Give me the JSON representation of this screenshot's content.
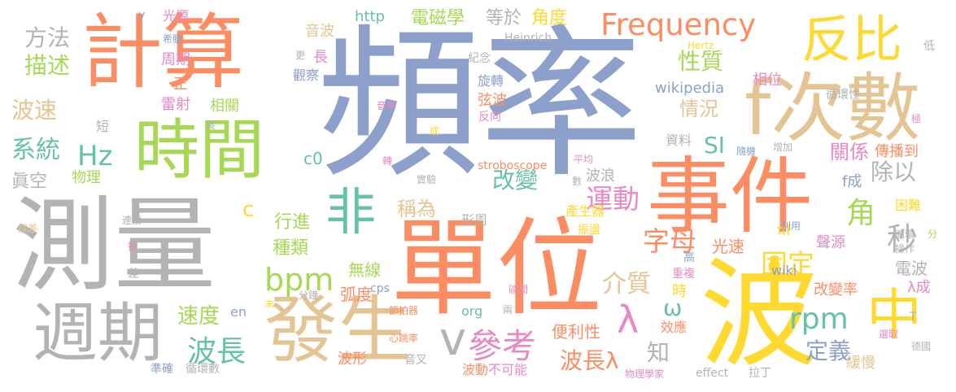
{
  "palette": {
    "blue": "#8da0cb",
    "orange": "#fc8d62",
    "green": "#66c2a5",
    "pink": "#e78ac3",
    "lime": "#a6d854",
    "yellow": "#ffd92f",
    "tan": "#e5c494",
    "gray": "#b3b3b3"
  },
  "words": [
    {
      "text": "頻率",
      "color": "blue"
    },
    {
      "text": "測量",
      "color": "gray"
    },
    {
      "text": "單位",
      "color": "orange"
    },
    {
      "text": "事件",
      "color": "orange"
    },
    {
      "text": "計算",
      "color": "orange"
    },
    {
      "text": "波",
      "color": "yellow"
    },
    {
      "text": "時間",
      "color": "lime"
    },
    {
      "text": "發生",
      "color": "tan"
    },
    {
      "text": "f次數",
      "color": "tan"
    },
    {
      "text": "週期",
      "color": "gray"
    },
    {
      "text": "反比",
      "color": "yellow"
    },
    {
      "text": "中",
      "color": "yellow"
    },
    {
      "text": "非",
      "color": "green"
    },
    {
      "text": "Frequency",
      "color": "orange"
    },
    {
      "text": "v",
      "color": "gray"
    },
    {
      "text": "參考",
      "color": "pink"
    },
    {
      "text": "λ",
      "color": "pink"
    },
    {
      "text": "bpm",
      "color": "lime"
    },
    {
      "text": "Hz",
      "color": "green"
    },
    {
      "text": "rpm",
      "color": "green"
    },
    {
      "text": "波長",
      "color": "green"
    },
    {
      "text": "字母",
      "color": "orange"
    },
    {
      "text": "固定",
      "color": "yellow"
    },
    {
      "text": "運動",
      "color": "pink"
    },
    {
      "text": "角",
      "color": "lime"
    },
    {
      "text": "秒",
      "color": "gray"
    },
    {
      "text": "SI",
      "color": "green"
    },
    {
      "text": "除以",
      "color": "gray"
    },
    {
      "text": "改變",
      "color": "green"
    },
    {
      "text": "介質",
      "color": "tan"
    },
    {
      "text": "稱為",
      "color": "tan"
    },
    {
      "text": "波長λ",
      "color": "orange"
    },
    {
      "text": "定義",
      "color": "blue"
    },
    {
      "text": "ω",
      "color": "green"
    },
    {
      "text": "速度",
      "color": "lime"
    },
    {
      "text": "系統",
      "color": "green"
    },
    {
      "text": "描述",
      "color": "lime"
    },
    {
      "text": "方法",
      "color": "gray"
    },
    {
      "text": "波速",
      "color": "tan"
    },
    {
      "text": "物理",
      "color": "lime"
    },
    {
      "text": "眞空",
      "color": "gray"
    },
    {
      "text": "c0",
      "color": "green"
    },
    {
      "text": "c",
      "color": "yellow"
    },
    {
      "text": "種類",
      "color": "lime"
    },
    {
      "text": "行進",
      "color": "lime"
    },
    {
      "text": "無線",
      "color": "lime"
    },
    {
      "text": "弧度",
      "color": "orange"
    },
    {
      "text": "光速",
      "color": "orange"
    },
    {
      "text": "知",
      "color": "gray"
    },
    {
      "text": "便利性",
      "color": "orange"
    },
    {
      "text": "性質",
      "color": "lime"
    },
    {
      "text": "情況",
      "color": "tan"
    },
    {
      "text": "關係",
      "color": "pink"
    },
    {
      "text": "電波",
      "color": "gray"
    },
    {
      "text": "角度",
      "color": "yellow"
    },
    {
      "text": "電磁學",
      "color": "lime"
    },
    {
      "text": "等於",
      "color": "gray"
    },
    {
      "text": "http",
      "color": "green"
    },
    {
      "text": "音波",
      "color": "tan"
    },
    {
      "text": "相位",
      "color": "pink"
    },
    {
      "text": "wikipedia",
      "color": "blue"
    },
    {
      "text": "傳播到",
      "color": "orange"
    },
    {
      "text": "f成",
      "color": "blue"
    },
    {
      "text": "弦波",
      "color": "orange"
    },
    {
      "text": "周期",
      "color": "pink"
    },
    {
      "text": "雷射",
      "color": "pink"
    },
    {
      "text": "相關",
      "color": "lime"
    },
    {
      "text": "波浪",
      "color": "gray"
    },
    {
      "text": "改變率",
      "color": "orange"
    },
    {
      "text": "聲源",
      "color": "pink"
    },
    {
      "text": "πf",
      "color": "yellow"
    },
    {
      "text": "困難",
      "color": "yellow"
    },
    {
      "text": "λ成",
      "color": "pink"
    },
    {
      "text": "緩慢",
      "color": "tan"
    },
    {
      "text": "產生器",
      "color": "yellow"
    },
    {
      "text": "波形",
      "color": "orange"
    },
    {
      "text": "波動",
      "color": "orange"
    },
    {
      "text": "不可能",
      "color": "pink"
    },
    {
      "text": "光源",
      "color": "pink"
    },
    {
      "text": "長",
      "color": "pink"
    },
    {
      "text": "正",
      "color": "orange"
    },
    {
      "text": "形周",
      "color": "gray"
    },
    {
      "text": "時",
      "color": "yellow"
    },
    {
      "text": "效應",
      "color": "orange"
    },
    {
      "text": "en",
      "color": "blue"
    },
    {
      "text": "org",
      "color": "green"
    },
    {
      "text": "stroboscope",
      "color": "orange"
    },
    {
      "text": "Heinrich",
      "color": "gray"
    },
    {
      "text": "Hertz",
      "color": "yellow"
    },
    {
      "text": "循環性",
      "color": "gray"
    },
    {
      "text": "旋轉",
      "color": "blue"
    },
    {
      "text": "紀念",
      "color": "gray"
    },
    {
      "text": "觀察",
      "color": "blue"
    },
    {
      "text": "資料",
      "color": "gray"
    },
    {
      "text": "wiki",
      "color": "blue"
    },
    {
      "text": "音叉",
      "color": "gray"
    },
    {
      "text": "準確",
      "color": "blue"
    },
    {
      "text": "循環數",
      "color": "gray"
    },
    {
      "text": "物理學家",
      "color": "pink"
    },
    {
      "text": "effect",
      "color": "gray"
    },
    {
      "text": "拉丁",
      "color": "gray"
    },
    {
      "text": "德國",
      "color": "gray"
    },
    {
      "text": "選取",
      "color": "pink"
    },
    {
      "text": "短",
      "color": "gray"
    },
    {
      "text": "希臘",
      "color": "blue"
    },
    {
      "text": "更",
      "color": "gray"
    },
    {
      "text": "低",
      "color": "gray"
    },
    {
      "text": "極",
      "color": "pink"
    },
    {
      "text": "增加",
      "color": "gray"
    },
    {
      "text": "隨機",
      "color": "blue"
    },
    {
      "text": "平均",
      "color": "pink"
    },
    {
      "text": "實驗",
      "color": "gray"
    },
    {
      "text": "數",
      "color": "gray"
    },
    {
      "text": "振盪",
      "color": "yellow"
    },
    {
      "text": "利用",
      "color": "blue"
    },
    {
      "text": "操作",
      "color": "gray"
    },
    {
      "text": "循環",
      "color": "gray"
    },
    {
      "text": "分",
      "color": "lime"
    },
    {
      "text": "T",
      "color": "gray"
    },
    {
      "text": "連續",
      "color": "gray"
    },
    {
      "text": "誤差",
      "color": "tan"
    },
    {
      "text": "拍",
      "color": "pink"
    },
    {
      "text": "差",
      "color": "gray"
    },
    {
      "text": "末",
      "color": "yellow"
    },
    {
      "text": "分鐘",
      "color": "gray"
    },
    {
      "text": "cps",
      "color": "blue"
    },
    {
      "text": "節拍器",
      "color": "orange"
    },
    {
      "text": "心跳率",
      "color": "orange"
    },
    {
      "text": "兩",
      "color": "gray"
    },
    {
      "text": "區間",
      "color": "pink"
    },
    {
      "text": "重複",
      "color": "pink"
    },
    {
      "text": "高",
      "color": "blue"
    },
    {
      "text": "轉",
      "color": "pink"
    },
    {
      "text": "成",
      "color": "yellow"
    },
    {
      "text": "反向",
      "color": "pink"
    },
    {
      "text": "音樂",
      "color": "pink"
    },
    {
      "text": "擺",
      "color": "gray"
    },
    {
      "text": "v",
      "color": "blue"
    }
  ]
}
